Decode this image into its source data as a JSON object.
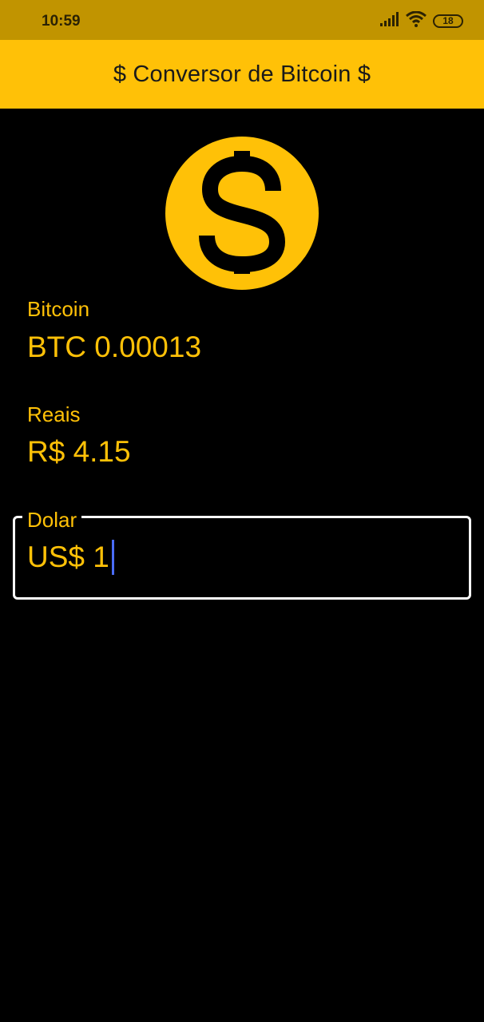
{
  "status_bar": {
    "time": "10:59",
    "battery_level": "18",
    "icons": [
      "signal-icon",
      "wifi-icon",
      "battery-icon"
    ]
  },
  "app_bar": {
    "title": "$ Conversor de Bitcoin $"
  },
  "coin_icon": {
    "glyph": "$",
    "color": "#FFC107"
  },
  "bitcoin": {
    "label": "Bitcoin",
    "value": "BTC 0.00013"
  },
  "reais": {
    "label": "Reais",
    "value": "R$ 4.15"
  },
  "dolar": {
    "label": "Dolar",
    "value": "US$ 1"
  },
  "colors": {
    "accent": "#FFC107",
    "status_bar": "#C19400",
    "background": "#000000",
    "caret": "#4A6CF7"
  }
}
